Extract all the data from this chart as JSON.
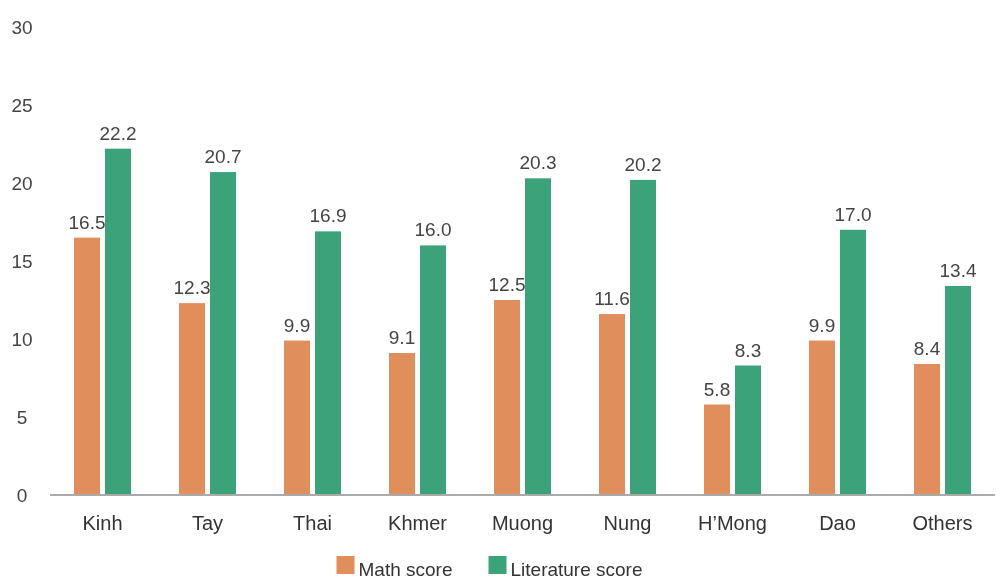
{
  "chart_data": {
    "type": "bar",
    "categories": [
      "Kinh",
      "Tay",
      "Thai",
      "Khmer",
      "Muong",
      "Nung",
      "H’Mong",
      "Dao",
      "Others"
    ],
    "series": [
      {
        "name": "Math score",
        "color": "#e08e5c",
        "values": [
          16.5,
          12.3,
          9.9,
          9.1,
          12.5,
          11.6,
          5.8,
          9.9,
          8.4
        ],
        "value_labels": [
          "16.5",
          "12.3",
          "9.9",
          "9.1",
          "12.5",
          "11.6",
          "5.8",
          "9.9",
          "8.4"
        ]
      },
      {
        "name": "Literature score",
        "color": "#3ca279",
        "values": [
          22.2,
          20.7,
          16.9,
          16.0,
          20.3,
          20.2,
          8.3,
          17.0,
          13.4
        ],
        "value_labels": [
          "22.2",
          "20.7",
          "16.9",
          "16.0",
          "20.3",
          "20.2",
          "8.3",
          "17.0",
          "13.4"
        ]
      }
    ],
    "ylim": [
      0,
      30
    ],
    "yticks": [
      0,
      5,
      10,
      15,
      20,
      25,
      30
    ],
    "grid": false,
    "legend": "bottom"
  }
}
